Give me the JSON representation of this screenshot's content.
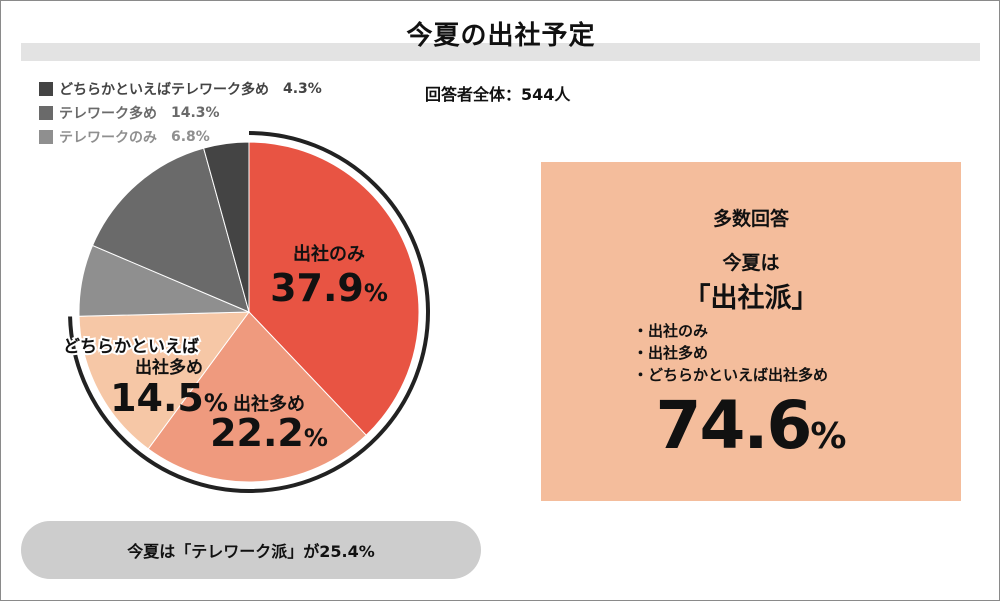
{
  "title": "今夏の出社予定",
  "total_label": "回答者全体：544人",
  "colors": {
    "office_only": "#e85443",
    "office_mostly": "#ef9a7e",
    "office_rather": "#f6c7a6",
    "telework_rather": "#444444",
    "telework_mostly": "#6a6a6a",
    "telework_only": "#8f8f8f",
    "callout_bg": "#f4bd9c",
    "pill_bg": "#cdcdcd"
  },
  "legend": [
    {
      "label": "どちらかといえばテレワーク多め",
      "pct": "4.3%",
      "color_key": "telework_rather"
    },
    {
      "label": "テレワーク多め",
      "pct": "14.3%",
      "color_key": "telework_mostly"
    },
    {
      "label": "テレワークのみ",
      "pct": "6.8%",
      "color_key": "telework_only"
    }
  ],
  "slice_labels": {
    "office_only": {
      "line1": "出社のみ",
      "value": "37.9",
      "unit": "%"
    },
    "office_mostly": {
      "line1": "出社多め",
      "value": "22.2",
      "unit": "%"
    },
    "office_rather": {
      "line1": "どちらかといえば",
      "line2": "出社多め",
      "value": "14.5",
      "unit": "%"
    }
  },
  "chart_data": {
    "type": "pie",
    "title": "今夏の出社予定",
    "start": "top",
    "direction": "clockwise",
    "slices": [
      {
        "label": "出社のみ",
        "value": 37.9,
        "color_key": "office_only"
      },
      {
        "label": "出社多め",
        "value": 22.2,
        "color_key": "office_mostly"
      },
      {
        "label": "どちらかといえば出社多め",
        "value": 14.5,
        "color_key": "office_rather"
      },
      {
        "label": "テレワークのみ",
        "value": 6.8,
        "color_key": "telework_only"
      },
      {
        "label": "テレワーク多め",
        "value": 14.3,
        "color_key": "telework_mostly"
      },
      {
        "label": "どちらかといえばテレワーク多め",
        "value": 4.3,
        "color_key": "telework_rather"
      }
    ],
    "highlight_arc_slices": [
      "出社のみ",
      "出社多め",
      "どちらかといえば出社多め"
    ]
  },
  "callout": {
    "heading": "多数回答",
    "sub1": "今夏は",
    "sub2": "「出社派」",
    "items": [
      "出社のみ",
      "出社多め",
      "どちらかといえば出社多め"
    ],
    "big_value": "74.6",
    "big_unit": "%"
  },
  "bottom_note": "今夏は「テレワーク派」が25.4%"
}
